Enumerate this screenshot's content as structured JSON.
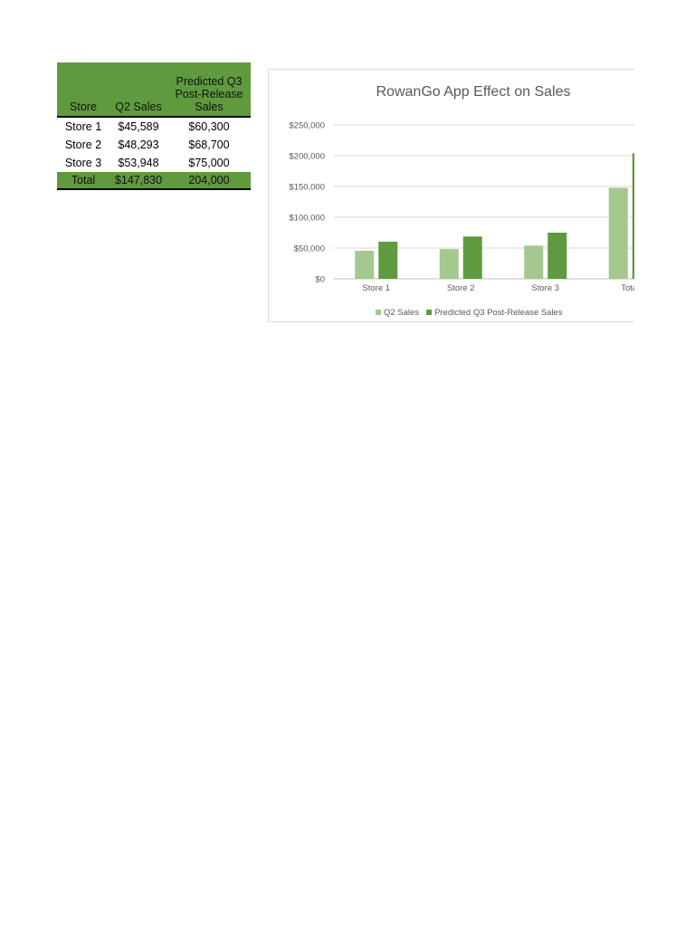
{
  "table": {
    "headers": {
      "store": "Store",
      "q2": "Q2 Sales",
      "q3_line1": "Predicted Q3",
      "q3_line2": "Post-Release",
      "q3_line3": "Sales"
    },
    "rows": [
      {
        "store": "Store 1",
        "q2": "$45,589",
        "q3": "$60,300"
      },
      {
        "store": "Store 2",
        "q2": "$48,293",
        "q3": "$68,700"
      },
      {
        "store": "Store 3",
        "q2": "$53,948",
        "q3": "$75,000"
      }
    ],
    "total": {
      "store": "Total",
      "q2": "$147,830",
      "q3": "204,000"
    }
  },
  "colors": {
    "header_fill": "#5f9a3f",
    "q2_series": "#a5c790",
    "q3_series": "#5f9a3f"
  },
  "chart_data": {
    "type": "bar",
    "title": "RowanGo App Effect on Sales",
    "categories": [
      "Store 1",
      "Store 2",
      "Store 3",
      "Total"
    ],
    "series": [
      {
        "name": "Q2 Sales",
        "values": [
          45589,
          48293,
          53948,
          147830
        ]
      },
      {
        "name": "Predicted Q3 Post-Release Sales",
        "values": [
          60300,
          68700,
          75000,
          204000
        ]
      }
    ],
    "yticks": [
      "$0",
      "$50,000",
      "$100,000",
      "$150,000",
      "$200,000",
      "$250,000"
    ],
    "ylim": [
      0,
      250000
    ],
    "grid": true,
    "legend_position": "bottom"
  }
}
